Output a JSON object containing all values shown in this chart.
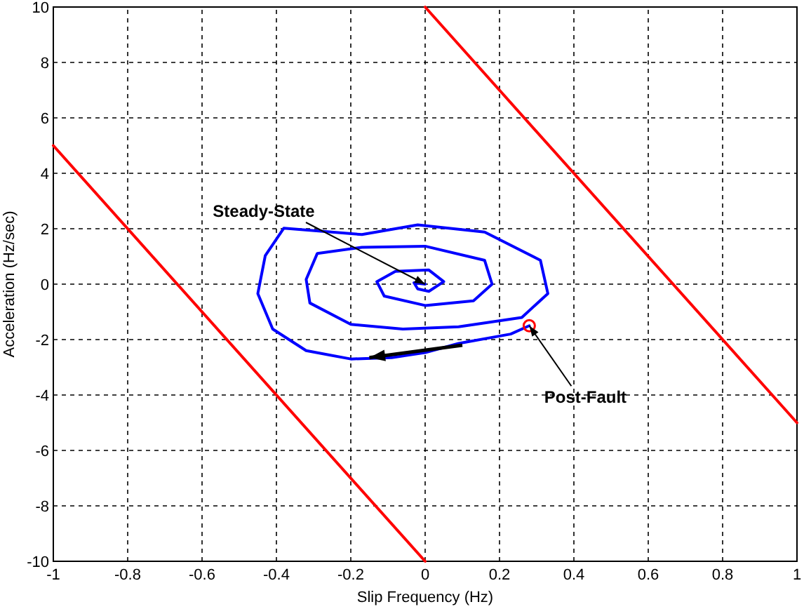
{
  "chart_data": {
    "type": "line",
    "xlabel": "Slip Frequency (Hz)",
    "ylabel": "Acceleration (Hz/sec)",
    "xlim": [
      -1,
      1
    ],
    "xticks": [
      -1,
      -0.8,
      -0.6,
      -0.4,
      -0.2,
      0,
      0.2,
      0.4,
      0.6,
      0.8,
      1
    ],
    "ylim": [
      -10,
      10
    ],
    "yticks": [
      -10,
      -8,
      -6,
      -4,
      -2,
      0,
      2,
      4,
      6,
      8,
      10
    ],
    "grid": true,
    "line_style": "solid",
    "series": [
      {
        "color": "#ff0000",
        "x": [
          -1,
          0
        ],
        "values": [
          5,
          -10
        ]
      },
      {
        "color": "#ff0000",
        "x": [
          0,
          1
        ],
        "values": [
          10,
          -5
        ]
      },
      {
        "color": "#0000ff",
        "x": [
          0.28,
          0.23,
          0.09,
          0,
          -0.09,
          -0.2,
          -0.32,
          -0.41,
          -0.45,
          -0.43,
          -0.38,
          -0.17,
          -0.02,
          0.16,
          0.31,
          0.33,
          0.26,
          0.09,
          -0.06,
          -0.2,
          -0.31,
          -0.32,
          -0.29,
          -0.17,
          0,
          0.16,
          0.18,
          0.13,
          0,
          -0.11,
          -0.13,
          -0.08,
          0.01,
          0.05,
          0.01,
          -0.02,
          -0.03,
          0
        ],
        "values": [
          -1.5,
          -1.8,
          -2.14,
          -2.47,
          -2.65,
          -2.7,
          -2.4,
          -1.62,
          -0.34,
          1.03,
          2.02,
          1.79,
          2.14,
          1.88,
          0.86,
          -0.34,
          -1.2,
          -1.54,
          -1.62,
          -1.45,
          -0.68,
          0.17,
          1.11,
          1.33,
          1.37,
          0.86,
          0,
          -0.6,
          -0.77,
          -0.43,
          0.09,
          0.46,
          0.51,
          0.09,
          -0.26,
          -0.17,
          0.05,
          0
        ]
      },
      {
        "type": "scatter",
        "marker": "circle",
        "color": "#ff0000",
        "x": [
          0.28
        ],
        "values": [
          -1.5
        ]
      }
    ],
    "annotations": [
      {
        "text": "Steady-State",
        "x": 0,
        "y": 0
      },
      {
        "text": "Post-Fault",
        "x": 0.28,
        "y": -1.5
      }
    ]
  }
}
